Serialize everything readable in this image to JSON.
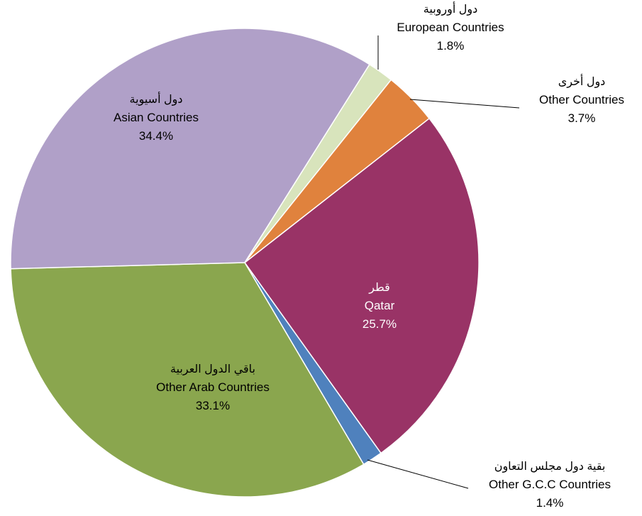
{
  "chart_data": {
    "type": "pie",
    "categories": [
      "Qatar",
      "Other G.C.C Countries",
      "Other Arab Countries",
      "Asian Countries",
      "European Countries",
      "Other Countries"
    ],
    "arabic_labels": [
      "قطر",
      "بقية دول مجلس التعاون",
      "باقي الدول العربية",
      "دول أسيوية",
      "دول أوروبية",
      "دول أخرى"
    ],
    "values": [
      25.7,
      1.4,
      33.1,
      34.4,
      1.8,
      3.7
    ],
    "value_labels": [
      "25.7%",
      "1.4%",
      "33.1%",
      "34.4%",
      "1.8%",
      "3.7%"
    ],
    "colors": [
      "#993366",
      "#4f81bd",
      "#8aa64e",
      "#b0a0c8",
      "#d8e4bc",
      "#e0823d"
    ]
  }
}
